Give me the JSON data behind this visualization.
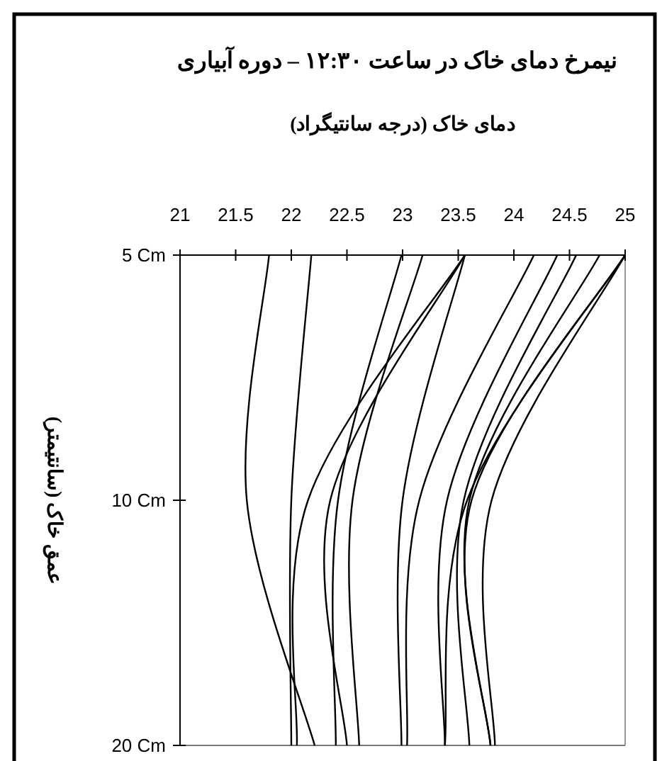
{
  "chart_data": {
    "type": "line",
    "orientation": "horizontal",
    "title": "نیمرخ دمای خاک در ساعت ۱۲:۳۰ – دوره آبیاری",
    "xlabel": "دمای خاک (درجه سانتیگراد)",
    "ylabel": "عمق خاک (سانتیمتر)",
    "categories": [
      "5 Cm",
      "10 Cm",
      "20 Cm"
    ],
    "xlim": [
      21,
      25
    ],
    "xticks": [
      21,
      21.5,
      22,
      22.5,
      23,
      23.5,
      24,
      24.5,
      25
    ],
    "marker": "none",
    "line_style": "solid",
    "series": [
      {
        "color": "#000000",
        "values": [
          21.8,
          21.6,
          22.21
        ]
      },
      {
        "color": "#000000",
        "values": [
          22.18,
          22.0,
          22.0
        ]
      },
      {
        "color": "#000000",
        "values": [
          22.99,
          22.42,
          22.4
        ]
      },
      {
        "color": "#000000",
        "values": [
          23.18,
          22.55,
          22.61
        ]
      },
      {
        "color": "#000000",
        "values": [
          23.56,
          22.15,
          22.05
        ]
      },
      {
        "color": "#000000",
        "values": [
          23.56,
          22.35,
          22.5
        ]
      },
      {
        "color": "#000000",
        "values": [
          23.56,
          23.0,
          22.99
        ]
      },
      {
        "color": "#000000",
        "values": [
          24.18,
          23.15,
          23.04
        ]
      },
      {
        "color": "#000000",
        "values": [
          24.39,
          23.4,
          23.38
        ]
      },
      {
        "color": "#000000",
        "values": [
          24.56,
          23.55,
          23.6
        ]
      },
      {
        "color": "#000000",
        "values": [
          24.77,
          23.6,
          23.79
        ]
      },
      {
        "color": "#000000",
        "values": [
          25,
          23.62,
          23.79
        ]
      },
      {
        "color": "#000000",
        "values": [
          25,
          23.58,
          23.38
        ]
      },
      {
        "color": "#000000",
        "values": [
          25,
          23.8,
          23.83
        ]
      }
    ]
  }
}
